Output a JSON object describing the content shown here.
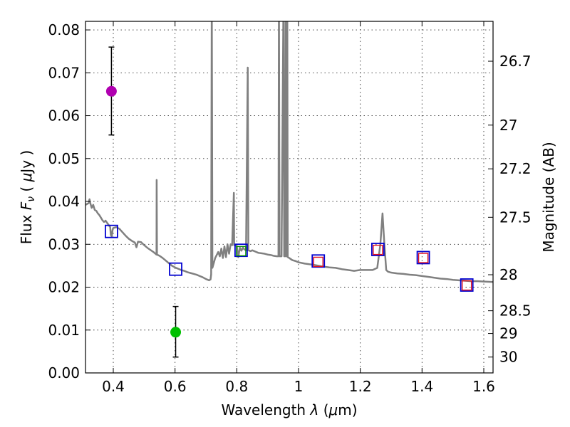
{
  "chart_data": {
    "type": "scatter",
    "title": "",
    "xlabel": "Wavelength",
    "xlabel_symbol": "λ",
    "xlabel_unit_prefix": "(",
    "xlabel_unit_mu": "μ",
    "xlabel_unit_suffix": "m)",
    "ylabel": "Flux",
    "ylabel_symbol": "F",
    "ylabel_symbol_sub": "ν",
    "ylabel_unit_prefix": "(",
    "ylabel_unit_mu": "μ",
    "ylabel_unit_suffix": "Jy )",
    "y2label": "Magnitude (AB)",
    "xlim": [
      0.31,
      1.63
    ],
    "ylim": [
      0.0,
      0.082
    ],
    "grid": true,
    "colors": {
      "spectrum": "#808080",
      "magenta": "#b000b0",
      "green": "#00c000",
      "blue_box": "#0000d0",
      "red_box": "#e01020",
      "green_box": "#009000",
      "black": "#000000"
    },
    "x_ticks": [
      {
        "value": 0.4,
        "label": "0.4"
      },
      {
        "value": 0.6,
        "label": "0.6"
      },
      {
        "value": 0.8,
        "label": "0.8"
      },
      {
        "value": 1.0,
        "label": "1"
      },
      {
        "value": 1.2,
        "label": "1.2"
      },
      {
        "value": 1.4,
        "label": "1.4"
      },
      {
        "value": 1.6,
        "label": "1.6"
      }
    ],
    "y_ticks": [
      {
        "value": 0.0,
        "label": "0.00"
      },
      {
        "value": 0.01,
        "label": "0.01"
      },
      {
        "value": 0.02,
        "label": "0.02"
      },
      {
        "value": 0.03,
        "label": "0.03"
      },
      {
        "value": 0.04,
        "label": "0.04"
      },
      {
        "value": 0.05,
        "label": "0.05"
      },
      {
        "value": 0.06,
        "label": "0.06"
      },
      {
        "value": 0.07,
        "label": "0.07"
      },
      {
        "value": 0.08,
        "label": "0.08"
      }
    ],
    "y2_ticks": [
      {
        "flux": 0.0727,
        "label": "26.7"
      },
      {
        "flux": 0.0578,
        "label": "27"
      },
      {
        "flux": 0.0476,
        "label": "27.2"
      },
      {
        "flux": 0.0363,
        "label": "27.5"
      },
      {
        "flux": 0.0229,
        "label": "28"
      },
      {
        "flux": 0.0145,
        "label": "28.5"
      },
      {
        "flux": 0.0092,
        "label": "29"
      },
      {
        "flux": 0.0037,
        "label": "30"
      }
    ],
    "spectrum": {
      "name": "model SED",
      "points": [
        [
          0.31,
          0.0392
        ],
        [
          0.315,
          0.0394
        ],
        [
          0.32,
          0.0396
        ],
        [
          0.323,
          0.0405
        ],
        [
          0.326,
          0.0395
        ],
        [
          0.33,
          0.0385
        ],
        [
          0.335,
          0.0392
        ],
        [
          0.34,
          0.038
        ],
        [
          0.345,
          0.0378
        ],
        [
          0.35,
          0.0372
        ],
        [
          0.355,
          0.0368
        ],
        [
          0.36,
          0.0362
        ],
        [
          0.365,
          0.0356
        ],
        [
          0.37,
          0.0352
        ],
        [
          0.375,
          0.0355
        ],
        [
          0.38,
          0.035
        ],
        [
          0.385,
          0.0345
        ],
        [
          0.39,
          0.034
        ],
        [
          0.392,
          0.0322
        ],
        [
          0.395,
          0.0318
        ],
        [
          0.398,
          0.0335
        ],
        [
          0.4,
          0.0338
        ],
        [
          0.41,
          0.034
        ],
        [
          0.42,
          0.0336
        ],
        [
          0.43,
          0.0328
        ],
        [
          0.44,
          0.032
        ],
        [
          0.45,
          0.0313
        ],
        [
          0.46,
          0.0308
        ],
        [
          0.47,
          0.0304
        ],
        [
          0.475,
          0.0293
        ],
        [
          0.48,
          0.0306
        ],
        [
          0.49,
          0.0305
        ],
        [
          0.5,
          0.0298
        ],
        [
          0.51,
          0.0292
        ],
        [
          0.52,
          0.0287
        ],
        [
          0.53,
          0.0282
        ],
        [
          0.535,
          0.0279
        ],
        [
          0.54,
          0.0276
        ],
        [
          0.5405,
          0.045
        ],
        [
          0.5415,
          0.0276
        ],
        [
          0.55,
          0.0273
        ],
        [
          0.56,
          0.0268
        ],
        [
          0.57,
          0.0262
        ],
        [
          0.58,
          0.0256
        ],
        [
          0.59,
          0.025
        ],
        [
          0.6,
          0.0246
        ],
        [
          0.61,
          0.0243
        ],
        [
          0.62,
          0.024
        ],
        [
          0.63,
          0.0238
        ],
        [
          0.64,
          0.0235
        ],
        [
          0.65,
          0.0233
        ],
        [
          0.66,
          0.0231
        ],
        [
          0.67,
          0.0229
        ],
        [
          0.68,
          0.0226
        ],
        [
          0.69,
          0.0223
        ],
        [
          0.7,
          0.0219
        ],
        [
          0.71,
          0.0216
        ],
        [
          0.715,
          0.0218
        ],
        [
          0.717,
          0.023
        ],
        [
          0.719,
          0.09
        ],
        [
          0.721,
          0.0245
        ],
        [
          0.725,
          0.0255
        ],
        [
          0.73,
          0.0268
        ],
        [
          0.74,
          0.0282
        ],
        [
          0.745,
          0.0272
        ],
        [
          0.75,
          0.029
        ],
        [
          0.755,
          0.0268
        ],
        [
          0.76,
          0.0295
        ],
        [
          0.765,
          0.027
        ],
        [
          0.77,
          0.03
        ],
        [
          0.775,
          0.0278
        ],
        [
          0.78,
          0.03
        ],
        [
          0.785,
          0.0298
        ],
        [
          0.7905,
          0.042
        ],
        [
          0.7915,
          0.0298
        ],
        [
          0.8,
          0.0296
        ],
        [
          0.805,
          0.027
        ],
        [
          0.81,
          0.0292
        ],
        [
          0.815,
          0.0285
        ],
        [
          0.82,
          0.0292
        ],
        [
          0.825,
          0.0288
        ],
        [
          0.83,
          0.0286
        ],
        [
          0.8355,
          0.0712
        ],
        [
          0.8375,
          0.0286
        ],
        [
          0.845,
          0.0284
        ],
        [
          0.85,
          0.0286
        ],
        [
          0.86,
          0.0283
        ],
        [
          0.87,
          0.028
        ],
        [
          0.88,
          0.0279
        ],
        [
          0.89,
          0.0278
        ],
        [
          0.9,
          0.0276
        ],
        [
          0.91,
          0.0275
        ],
        [
          0.92,
          0.0273
        ],
        [
          0.93,
          0.0272
        ],
        [
          0.935,
          0.0272
        ],
        [
          0.9365,
          0.09
        ],
        [
          0.9385,
          0.0272
        ],
        [
          0.945,
          0.0272
        ],
        [
          0.9515,
          0.09
        ],
        [
          0.9535,
          0.0272
        ],
        [
          0.957,
          0.0272
        ],
        [
          0.9585,
          0.09
        ],
        [
          0.96,
          0.0272
        ],
        [
          0.962,
          0.0272
        ],
        [
          0.9635,
          0.09
        ],
        [
          0.965,
          0.027
        ],
        [
          0.97,
          0.0268
        ],
        [
          0.98,
          0.0263
        ],
        [
          0.99,
          0.0261
        ],
        [
          1.0,
          0.0258
        ],
        [
          1.02,
          0.0255
        ],
        [
          1.05,
          0.0252
        ],
        [
          1.08,
          0.0248
        ],
        [
          1.1,
          0.0246
        ],
        [
          1.12,
          0.0245
        ],
        [
          1.14,
          0.0242
        ],
        [
          1.16,
          0.024
        ],
        [
          1.18,
          0.0238
        ],
        [
          1.2,
          0.024
        ],
        [
          1.22,
          0.024
        ],
        [
          1.24,
          0.024
        ],
        [
          1.255,
          0.0245
        ],
        [
          1.265,
          0.03
        ],
        [
          1.272,
          0.0372
        ],
        [
          1.278,
          0.03
        ],
        [
          1.284,
          0.024
        ],
        [
          1.29,
          0.0236
        ],
        [
          1.3,
          0.0234
        ],
        [
          1.32,
          0.0232
        ],
        [
          1.34,
          0.0231
        ],
        [
          1.36,
          0.0229
        ],
        [
          1.38,
          0.0228
        ],
        [
          1.4,
          0.0226
        ],
        [
          1.42,
          0.0224
        ],
        [
          1.44,
          0.0222
        ],
        [
          1.46,
          0.022
        ],
        [
          1.48,
          0.0219
        ],
        [
          1.5,
          0.0217
        ],
        [
          1.52,
          0.0216
        ],
        [
          1.54,
          0.0215
        ],
        [
          1.56,
          0.0214
        ],
        [
          1.58,
          0.0214
        ],
        [
          1.6,
          0.0213
        ],
        [
          1.63,
          0.0212
        ]
      ]
    },
    "photometry": [
      {
        "name": "magenta-point",
        "x": 0.394,
        "y": 0.0657,
        "yerr_low": 0.0555,
        "yerr_high": 0.076,
        "color": "magenta"
      },
      {
        "name": "green-point",
        "x": 0.602,
        "y": 0.0095,
        "yerr_low": 0.0037,
        "yerr_high": 0.0155,
        "color": "green"
      }
    ],
    "model_boxes": [
      {
        "x": 0.394,
        "y": 0.033,
        "color": "blue_box"
      },
      {
        "x": 0.602,
        "y": 0.0242,
        "color": "blue_box"
      },
      {
        "x": 0.814,
        "y": 0.0286,
        "color": "blue_box"
      },
      {
        "x": 1.064,
        "y": 0.0261,
        "color": "blue_box"
      },
      {
        "x": 1.257,
        "y": 0.0288,
        "color": "blue_box"
      },
      {
        "x": 1.404,
        "y": 0.0269,
        "color": "blue_box"
      },
      {
        "x": 1.545,
        "y": 0.0205,
        "color": "blue_box"
      }
    ],
    "observed_boxes": [
      {
        "x": 0.814,
        "y": 0.0284,
        "color": "green_box"
      },
      {
        "x": 1.064,
        "y": 0.0259,
        "color": "red_box"
      },
      {
        "x": 1.257,
        "y": 0.0287,
        "color": "red_box"
      },
      {
        "x": 1.404,
        "y": 0.0268,
        "color": "red_box"
      },
      {
        "x": 1.545,
        "y": 0.0204,
        "color": "red_box"
      }
    ]
  }
}
